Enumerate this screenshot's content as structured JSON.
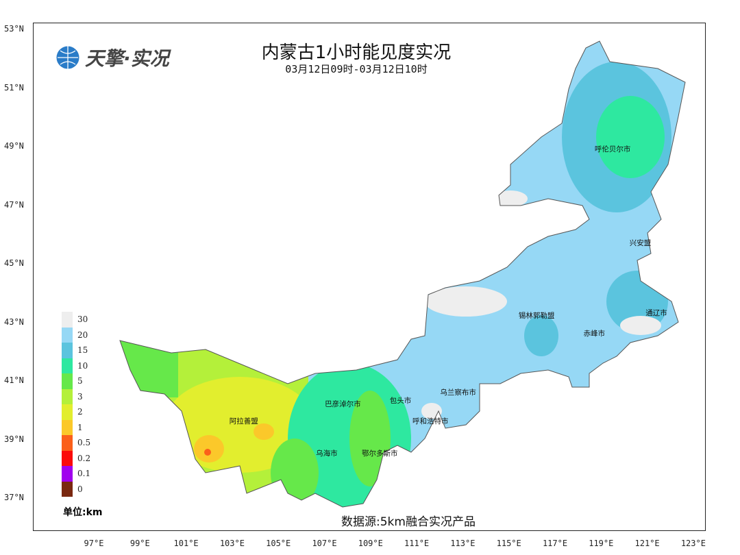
{
  "title": "内蒙古1小时能见度实况",
  "subtitle": "03月12日09时-03月12日10时",
  "logo": {
    "text": "天擎·实况",
    "icon": "globe-icon"
  },
  "source": "数据源:5km融合实况产品",
  "legend": {
    "unit": "单位:km",
    "items": [
      {
        "label": "30",
        "color": "#eeeeee"
      },
      {
        "label": "20",
        "color": "#96d8f5"
      },
      {
        "label": "15",
        "color": "#5bc4de"
      },
      {
        "label": "10",
        "color": "#2ee8a0"
      },
      {
        "label": "5",
        "color": "#66e84a"
      },
      {
        "label": "3",
        "color": "#b4f03a"
      },
      {
        "label": "2",
        "color": "#e2ee2e"
      },
      {
        "label": "1",
        "color": "#fbc82a"
      },
      {
        "label": "0.5",
        "color": "#fb5f1a"
      },
      {
        "label": "0.2",
        "color": "#fb0a0a"
      },
      {
        "label": "0.1",
        "color": "#a000ee"
      },
      {
        "label": "0",
        "color": "#7a2810"
      }
    ]
  },
  "lat_ticks": [
    "53°N",
    "51°N",
    "49°N",
    "47°N",
    "45°N",
    "43°N",
    "41°N",
    "39°N",
    "37°N"
  ],
  "lon_ticks": [
    "97°E",
    "99°E",
    "101°E",
    "103°E",
    "105°E",
    "107°E",
    "109°E",
    "111°E",
    "113°E",
    "115°E",
    "117°E",
    "119°E",
    "121°E",
    "123°E"
  ],
  "cities": [
    {
      "name": "呼伦贝尔市",
      "lon": 119.5,
      "lat": 49.1
    },
    {
      "name": "兴安盟",
      "lon": 120.7,
      "lat": 45.9
    },
    {
      "name": "通辽市",
      "lon": 121.4,
      "lat": 43.5
    },
    {
      "name": "锡林郭勒盟",
      "lon": 116.2,
      "lat": 43.4
    },
    {
      "name": "赤峰市",
      "lon": 118.7,
      "lat": 42.8
    },
    {
      "name": "乌兰察布市",
      "lon": 112.8,
      "lat": 40.8
    },
    {
      "name": "包头市",
      "lon": 110.3,
      "lat": 40.5
    },
    {
      "name": "巴彦淖尔市",
      "lon": 107.8,
      "lat": 40.4
    },
    {
      "name": "呼和浩特市",
      "lon": 111.6,
      "lat": 39.8
    },
    {
      "name": "阿拉善盟",
      "lon": 103.5,
      "lat": 39.8
    },
    {
      "name": "乌海市",
      "lon": 107.1,
      "lat": 38.7
    },
    {
      "name": "鄂尔多斯市",
      "lon": 109.4,
      "lat": 38.7
    }
  ]
}
